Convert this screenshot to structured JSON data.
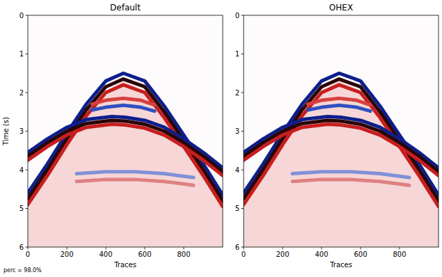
{
  "chart_data": [
    {
      "type": "line",
      "title": "Default",
      "x_label": "Traces",
      "y_label": "Time (s)",
      "annotation": "perc = 98.0%",
      "xlim": [
        0,
        1000
      ],
      "ylim": [
        6,
        0
      ],
      "xticks": [
        0,
        200,
        400,
        600,
        800
      ],
      "yticks": [
        0,
        1,
        2,
        3,
        4,
        5,
        6
      ],
      "grid": false,
      "series": [
        {
          "type": "area",
          "color": "#f6d6d6",
          "x": [
            0,
            100,
            200,
            300,
            400,
            490,
            600,
            700,
            800,
            900,
            1000
          ],
          "values": [
            4.9,
            4.15,
            3.35,
            2.6,
            1.95,
            1.7,
            1.95,
            2.65,
            3.4,
            4.15,
            4.95
          ]
        },
        {
          "color": "#0d1f8c",
          "x": [
            0,
            100,
            200,
            300,
            400,
            490,
            600,
            700,
            800,
            900,
            1000
          ],
          "values": [
            4.6,
            3.85,
            3.05,
            2.3,
            1.7,
            1.5,
            1.7,
            2.35,
            3.1,
            3.85,
            4.65
          ]
        },
        {
          "color": "#2a0505",
          "x": [
            0,
            100,
            200,
            300,
            400,
            490,
            600,
            700,
            800,
            900,
            1000
          ],
          "values": [
            4.75,
            4.0,
            3.2,
            2.45,
            1.85,
            1.65,
            1.85,
            2.5,
            3.25,
            4.0,
            4.8
          ]
        },
        {
          "color": "#c81e1e",
          "x": [
            0,
            100,
            200,
            300,
            400,
            490,
            600,
            700,
            800,
            900,
            1000
          ],
          "values": [
            4.9,
            4.15,
            3.35,
            2.6,
            2.0,
            1.8,
            2.0,
            2.65,
            3.4,
            4.15,
            4.95
          ]
        },
        {
          "color": "#0d1f8c",
          "x": [
            0,
            100,
            200,
            300,
            430,
            500,
            600,
            700,
            800,
            900,
            1000
          ],
          "values": [
            3.55,
            3.2,
            2.9,
            2.7,
            2.62,
            2.64,
            2.72,
            2.9,
            3.2,
            3.55,
            3.95
          ]
        },
        {
          "color": "#2a0505",
          "x": [
            0,
            100,
            200,
            300,
            430,
            500,
            600,
            700,
            800,
            900,
            1000
          ],
          "values": [
            3.65,
            3.3,
            3.0,
            2.8,
            2.72,
            2.74,
            2.82,
            3.0,
            3.3,
            3.65,
            4.05
          ]
        },
        {
          "color": "#c81e1e",
          "x": [
            0,
            100,
            200,
            300,
            430,
            500,
            600,
            700,
            800,
            900,
            1000
          ],
          "values": [
            3.75,
            3.4,
            3.1,
            2.9,
            2.82,
            2.84,
            2.92,
            3.1,
            3.4,
            3.75,
            4.15
          ]
        },
        {
          "color": "#d84040",
          "x": [
            330,
            400,
            490,
            580,
            650
          ],
          "values": [
            2.3,
            2.2,
            2.15,
            2.2,
            2.32
          ]
        },
        {
          "color": "#3050c0",
          "x": [
            330,
            400,
            490,
            580,
            650
          ],
          "values": [
            2.45,
            2.38,
            2.33,
            2.38,
            2.48
          ]
        },
        {
          "color": "#8090d8",
          "x": [
            250,
            400,
            550,
            700,
            850
          ],
          "values": [
            4.1,
            4.05,
            4.05,
            4.1,
            4.2
          ]
        },
        {
          "color": "#e08080",
          "x": [
            250,
            400,
            550,
            700,
            850
          ],
          "values": [
            4.3,
            4.25,
            4.25,
            4.3,
            4.4
          ]
        }
      ]
    },
    {
      "type": "line",
      "title": "OHEX",
      "x_label": "Traces",
      "xlim": [
        0,
        1000
      ],
      "ylim": [
        6,
        0
      ],
      "xticks": [
        0,
        200,
        400,
        600,
        800
      ],
      "yticks": [
        0,
        1,
        2,
        3,
        4,
        5,
        6
      ],
      "grid": false,
      "series": [
        {
          "type": "area",
          "color": "#f6d6d6",
          "x": [
            0,
            100,
            200,
            300,
            400,
            490,
            600,
            700,
            800,
            900,
            1000
          ],
          "values": [
            4.9,
            4.15,
            3.35,
            2.6,
            1.95,
            1.7,
            1.95,
            2.65,
            3.4,
            4.15,
            4.95
          ]
        },
        {
          "color": "#0d1f8c",
          "x": [
            0,
            100,
            200,
            300,
            400,
            490,
            600,
            700,
            800,
            900,
            1000
          ],
          "values": [
            4.6,
            3.85,
            3.05,
            2.3,
            1.7,
            1.5,
            1.7,
            2.35,
            3.1,
            3.85,
            4.65
          ]
        },
        {
          "color": "#2a0505",
          "x": [
            0,
            100,
            200,
            300,
            400,
            490,
            600,
            700,
            800,
            900,
            1000
          ],
          "values": [
            4.75,
            4.0,
            3.2,
            2.45,
            1.85,
            1.65,
            1.85,
            2.5,
            3.25,
            4.0,
            4.8
          ]
        },
        {
          "color": "#c81e1e",
          "x": [
            0,
            100,
            200,
            300,
            400,
            490,
            600,
            700,
            800,
            900,
            1000
          ],
          "values": [
            4.9,
            4.15,
            3.35,
            2.6,
            2.0,
            1.8,
            2.0,
            2.65,
            3.4,
            4.15,
            4.95
          ]
        },
        {
          "color": "#0d1f8c",
          "x": [
            0,
            100,
            200,
            300,
            430,
            500,
            600,
            700,
            800,
            900,
            1000
          ],
          "values": [
            3.55,
            3.2,
            2.9,
            2.7,
            2.62,
            2.64,
            2.72,
            2.9,
            3.2,
            3.55,
            3.95
          ]
        },
        {
          "color": "#2a0505",
          "x": [
            0,
            100,
            200,
            300,
            430,
            500,
            600,
            700,
            800,
            900,
            1000
          ],
          "values": [
            3.65,
            3.3,
            3.0,
            2.8,
            2.72,
            2.74,
            2.82,
            3.0,
            3.3,
            3.65,
            4.05
          ]
        },
        {
          "color": "#c81e1e",
          "x": [
            0,
            100,
            200,
            300,
            430,
            500,
            600,
            700,
            800,
            900,
            1000
          ],
          "values": [
            3.75,
            3.4,
            3.1,
            2.9,
            2.82,
            2.84,
            2.92,
            3.1,
            3.4,
            3.75,
            4.15
          ]
        },
        {
          "color": "#d84040",
          "x": [
            330,
            400,
            490,
            580,
            650
          ],
          "values": [
            2.3,
            2.2,
            2.15,
            2.2,
            2.32
          ]
        },
        {
          "color": "#3050c0",
          "x": [
            330,
            400,
            490,
            580,
            650
          ],
          "values": [
            2.45,
            2.38,
            2.33,
            2.38,
            2.48
          ]
        },
        {
          "color": "#8090d8",
          "x": [
            250,
            400,
            550,
            700,
            850
          ],
          "values": [
            4.1,
            4.05,
            4.05,
            4.1,
            4.2
          ]
        },
        {
          "color": "#e08080",
          "x": [
            250,
            400,
            550,
            700,
            850
          ],
          "values": [
            4.3,
            4.25,
            4.25,
            4.3,
            4.4
          ]
        }
      ]
    }
  ]
}
